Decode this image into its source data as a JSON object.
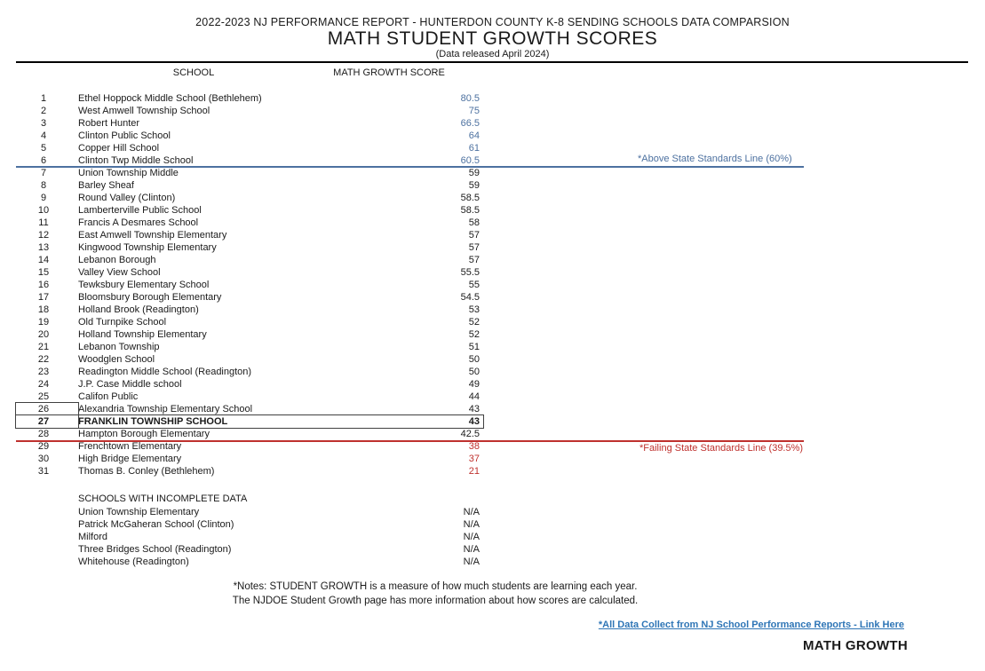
{
  "header": {
    "line1": "2022-2023 NJ PERFORMANCE REPORT - HUNTERDON COUNTY K-8 SENDING SCHOOLS DATA COMPARSION",
    "title": "MATH STUDENT GROWTH SCORES",
    "subtitle": "(Data released April 2024)"
  },
  "table": {
    "school_header": "SCHOOL",
    "score_header": "MATH GROWTH SCORE",
    "rows": [
      {
        "rank": "1",
        "name": "Ethel Hoppock Middle School (Bethlehem)",
        "score": "80.5",
        "color": "blue"
      },
      {
        "rank": "2",
        "name": "West Amwell Township School",
        "score": "75",
        "color": "blue"
      },
      {
        "rank": "3",
        "name": "Robert Hunter",
        "score": "66.5",
        "color": "blue"
      },
      {
        "rank": "4",
        "name": "Clinton Public School",
        "score": "64",
        "color": "blue"
      },
      {
        "rank": "5",
        "name": "Copper Hill School",
        "score": "61",
        "color": "blue"
      },
      {
        "rank": "6",
        "name": "Clinton Twp Middle School",
        "score": "60.5",
        "color": "blue"
      },
      {
        "rank": "7",
        "name": "Union Township Middle",
        "score": "59",
        "color": ""
      },
      {
        "rank": "8",
        "name": "Barley Sheaf",
        "score": "59",
        "color": ""
      },
      {
        "rank": "9",
        "name": "Round Valley (Clinton)",
        "score": "58.5",
        "color": ""
      },
      {
        "rank": "10",
        "name": "Lamberterville Public School",
        "score": "58.5",
        "color": ""
      },
      {
        "rank": "11",
        "name": "Francis A Desmares School",
        "score": "58",
        "color": ""
      },
      {
        "rank": "12",
        "name": "East Amwell Township Elementary",
        "score": "57",
        "color": ""
      },
      {
        "rank": "13",
        "name": "Kingwood Township Elementary",
        "score": "57",
        "color": ""
      },
      {
        "rank": "14",
        "name": "Lebanon Borough",
        "score": "57",
        "color": ""
      },
      {
        "rank": "15",
        "name": "Valley View School",
        "score": "55.5",
        "color": ""
      },
      {
        "rank": "16",
        "name": "Tewksbury Elementary School",
        "score": "55",
        "color": ""
      },
      {
        "rank": "17",
        "name": "Bloomsbury Borough Elementary",
        "score": "54.5",
        "color": ""
      },
      {
        "rank": "18",
        "name": "Holland Brook (Readington)",
        "score": "53",
        "color": ""
      },
      {
        "rank": "19",
        "name": "Old Turnpike School",
        "score": "52",
        "color": ""
      },
      {
        "rank": "20",
        "name": "Holland Township Elementary",
        "score": "52",
        "color": ""
      },
      {
        "rank": "21",
        "name": "Lebanon Township",
        "score": "51",
        "color": ""
      },
      {
        "rank": "22",
        "name": "Woodglen School",
        "score": "50",
        "color": ""
      },
      {
        "rank": "23",
        "name": "Readington Middle School (Readington)",
        "score": "50",
        "color": ""
      },
      {
        "rank": "24",
        "name": "J.P. Case Middle school",
        "score": "49",
        "color": ""
      },
      {
        "rank": "25",
        "name": "Califon Public",
        "score": "44",
        "color": ""
      },
      {
        "rank": "26",
        "name": "Alexandria Township Elementary School",
        "score": "43",
        "color": "",
        "rank_boxed": true
      },
      {
        "rank": "27",
        "name": "FRANKLIN TOWNSHIP SCHOOL",
        "score": "43",
        "color": "",
        "bold": true,
        "row_boxed": true
      },
      {
        "rank": "28",
        "name": "Hampton Borough Elementary",
        "score": "42.5",
        "color": ""
      },
      {
        "rank": "29",
        "name": "Frenchtown Elementary",
        "score": "38",
        "color": "red"
      },
      {
        "rank": "30",
        "name": "High Bridge Elementary",
        "score": "37",
        "color": "red"
      },
      {
        "rank": "31",
        "name": "Thomas B. Conley (Bethlehem)",
        "score": "21",
        "color": "red"
      }
    ],
    "annotations": {
      "above": {
        "label": "*Above State Standards Line (60%)",
        "color": "#4d71a0",
        "threshold": "60%"
      },
      "failing": {
        "label": "*Failing State Standards Line (39.5%)",
        "color": "#bf312e",
        "threshold": "39.5%"
      }
    }
  },
  "incomplete": {
    "header": "SCHOOLS WITH INCOMPLETE DATA",
    "rows": [
      {
        "name": "Union Township Elementary",
        "score": "N/A"
      },
      {
        "name": "Patrick McGaheran School (Clinton)",
        "score": "N/A"
      },
      {
        "name": "Milford",
        "score": "N/A"
      },
      {
        "name": "Three Bridges School (Readington)",
        "score": "N/A"
      },
      {
        "name": "Whitehouse (Readington)",
        "score": "N/A"
      }
    ]
  },
  "notes": {
    "line1": "*Notes: STUDENT GROWTH is a measure of how much students are learning each year.",
    "line2": "The NJDOE Student Growth page has more information about how scores are calculated."
  },
  "footer": {
    "link": "*All Data Collect from NJ School Performance Reports - Link Here",
    "label": "MATH GROWTH"
  }
}
